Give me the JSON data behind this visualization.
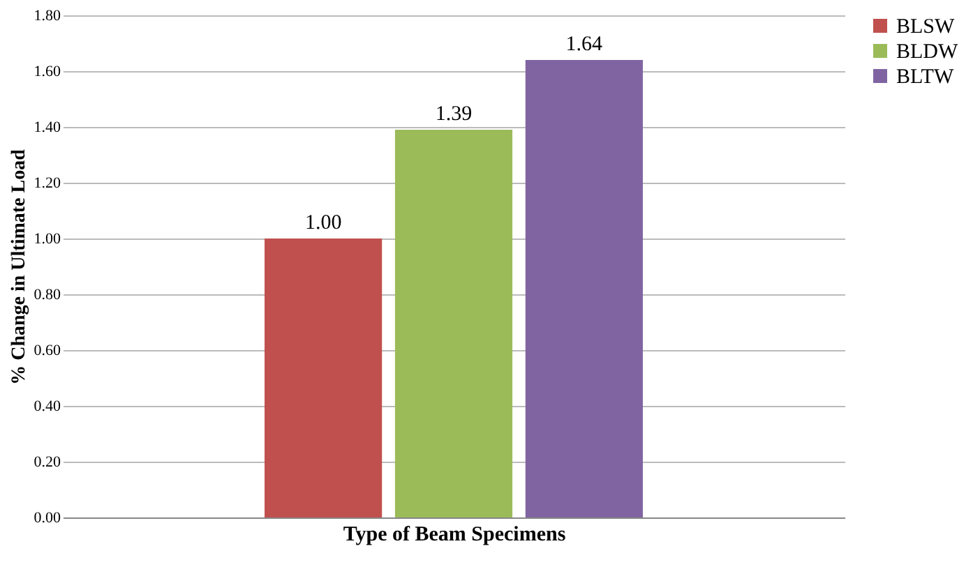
{
  "chart_data": {
    "type": "bar",
    "xlabel": "Type of Beam Specimens",
    "ylabel": "%  Change in Ultimate Load",
    "categories": [
      null
    ],
    "series": [
      {
        "name": "BLSW",
        "color": "#c0504d",
        "values": [
          1.0
        ],
        "value_labels": [
          "1.00"
        ]
      },
      {
        "name": "BLDW",
        "color": "#9bbb59",
        "values": [
          1.39
        ],
        "value_labels": [
          "1.39"
        ]
      },
      {
        "name": "BLTW",
        "color": "#8064a2",
        "values": [
          1.64
        ],
        "value_labels": [
          "1.64"
        ]
      }
    ],
    "ylim": [
      0,
      1.8
    ],
    "yticks": [
      {
        "value": 0,
        "label": "0.00"
      },
      {
        "value": 0.2,
        "label": "0.20"
      },
      {
        "value": 0.4,
        "label": "0.40"
      },
      {
        "value": 0.6,
        "label": "0.60"
      },
      {
        "value": 0.8,
        "label": "0.80"
      },
      {
        "value": 1.0,
        "label": "1.00"
      },
      {
        "value": 1.2,
        "label": "1.20"
      },
      {
        "value": 1.4,
        "label": "1.40"
      },
      {
        "value": 1.6,
        "label": "1.60"
      },
      {
        "value": 1.8,
        "label": "1.80"
      }
    ],
    "grid": "y",
    "legend": "right",
    "tick_labels": "y"
  }
}
